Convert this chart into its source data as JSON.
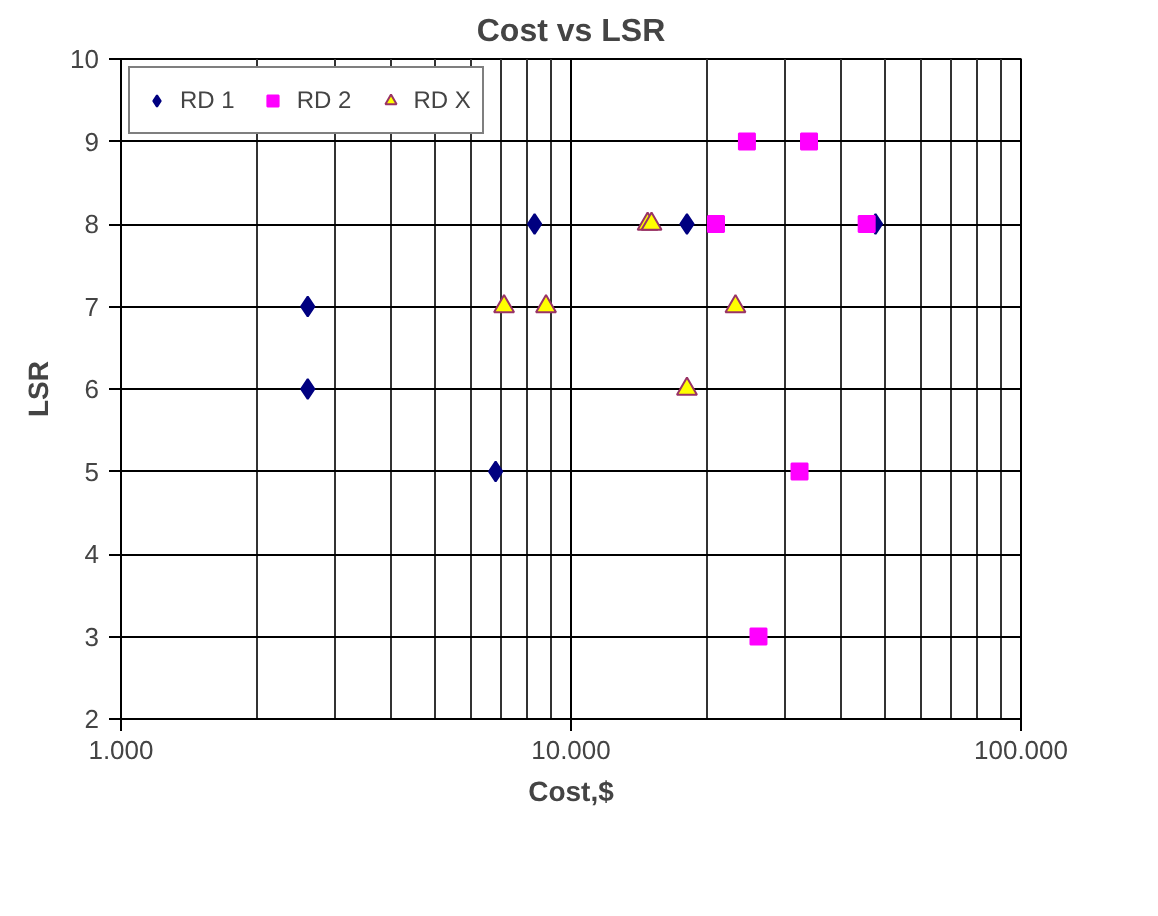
{
  "chart_data": {
    "type": "scatter",
    "title": "Cost vs LSR",
    "xlabel": "Cost,$",
    "ylabel": "LSR",
    "log": "x",
    "grid": true,
    "legend": "top",
    "xlim": [
      1000,
      100000
    ],
    "xticks": [
      {
        "value": 1000,
        "label": "1.000"
      },
      {
        "value": 10000,
        "label": "10.000"
      },
      {
        "value": 100000,
        "label": "100.000"
      }
    ],
    "ylim": [
      2,
      10
    ],
    "yticks": [
      2,
      3,
      4,
      5,
      6,
      7,
      8,
      9,
      10
    ],
    "series": [
      {
        "name": "RD 1",
        "color": "#000080",
        "marker": "diamond",
        "x": [
          2600,
          2600,
          6800,
          8300,
          18100,
          47500
        ],
        "values": [
          7,
          6,
          5,
          8,
          8,
          8
        ]
      },
      {
        "name": "RD 2",
        "color": "#ff00ff",
        "marker": "square",
        "x": [
          21000,
          24600,
          33800,
          45400,
          32200,
          26100
        ],
        "values": [
          8,
          9,
          9,
          8,
          5,
          3
        ]
      },
      {
        "name": "RD X",
        "color": "#ffff00",
        "marker": "triangle",
        "x": [
          7100,
          8800,
          14800,
          15100,
          23200,
          18100
        ],
        "values": [
          7,
          7,
          8,
          8,
          7,
          6
        ]
      }
    ]
  }
}
